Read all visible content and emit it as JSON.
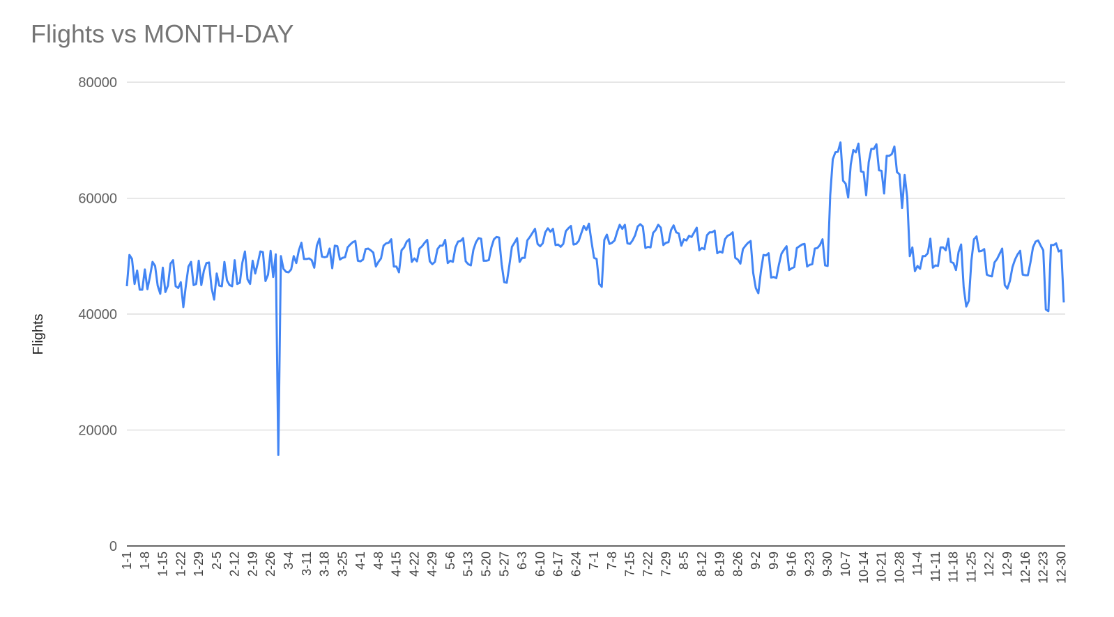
{
  "chart_data": {
    "type": "line",
    "title": "Flights vs MONTH-DAY",
    "xlabel": "",
    "ylabel": "Flights",
    "ylim": [
      0,
      80000
    ],
    "yticks": [
      0,
      20000,
      40000,
      60000,
      80000
    ],
    "grid": true,
    "legend": "none",
    "line_color": "#4285f4",
    "x_tick_labels": [
      "1-1",
      "1-8",
      "1-15",
      "1-22",
      "1-29",
      "2-5",
      "2-12",
      "2-19",
      "2-26",
      "3-4",
      "3-11",
      "3-18",
      "3-25",
      "4-1",
      "4-8",
      "4-15",
      "4-22",
      "4-29",
      "5-6",
      "5-13",
      "5-20",
      "5-27",
      "6-3",
      "6-10",
      "6-17",
      "6-24",
      "7-1",
      "7-8",
      "7-15",
      "7-22",
      "7-29",
      "8-5",
      "8-12",
      "8-19",
      "8-26",
      "9-2",
      "9-9",
      "9-16",
      "9-23",
      "9-30",
      "10-7",
      "10-14",
      "10-21",
      "10-28",
      "11-4",
      "11-11",
      "11-18",
      "11-25",
      "12-2",
      "12-9",
      "12-16",
      "12-23",
      "12-30"
    ],
    "series": [
      {
        "values": [
          44800,
          50200,
          49500,
          45200,
          47500,
          44200,
          44200,
          47700,
          44300,
          46500,
          49000,
          48300,
          44900,
          43500,
          48000,
          43800,
          44900,
          48700,
          49300,
          44800,
          44500,
          45500,
          41200,
          45000,
          48200,
          49000,
          45000,
          45200,
          49200,
          45000,
          47500,
          48800,
          48900,
          44500,
          42500,
          47000,
          44900,
          44800,
          49000,
          45800,
          45000,
          44800,
          49300,
          45200,
          45400,
          48900,
          50800,
          46000,
          45200,
          49200,
          47000,
          48800,
          50800,
          50700,
          45700,
          46800,
          50900,
          46400,
          50300,
          15700,
          50000,
          47800,
          47300,
          47200,
          47700,
          50000,
          48800,
          51000,
          52300,
          49500,
          49500,
          49600,
          49300,
          48000,
          51800,
          53000,
          49900,
          49800,
          49900,
          51300,
          47900,
          51800,
          51700,
          49400,
          49700,
          49800,
          51500,
          52000,
          52400,
          52600,
          49200,
          49100,
          49400,
          51200,
          51300,
          51000,
          50600,
          48200,
          49000,
          49600,
          51800,
          52200,
          52300,
          52900,
          48200,
          48200,
          47200,
          51000,
          51500,
          52500,
          52900,
          49000,
          49600,
          49100,
          51300,
          51700,
          52300,
          52800,
          49100,
          48600,
          49000,
          51200,
          51800,
          51800,
          52800,
          48800,
          49200,
          49000,
          51500,
          52500,
          52600,
          53100,
          49100,
          48600,
          48400,
          51100,
          52400,
          53100,
          53000,
          49200,
          49200,
          49300,
          51500,
          52900,
          53300,
          53200,
          48600,
          45500,
          45400,
          48400,
          51600,
          52300,
          53100,
          49000,
          49700,
          49700,
          52700,
          53300,
          54000,
          54700,
          52100,
          51700,
          52200,
          54100,
          54800,
          54200,
          54700,
          51900,
          52000,
          51600,
          52100,
          54300,
          54800,
          55200,
          52000,
          52100,
          52600,
          53900,
          55200,
          54500,
          55600,
          52500,
          49700,
          49500,
          45200,
          44700,
          52800,
          53700,
          52100,
          52300,
          52700,
          54200,
          55400,
          54700,
          55400,
          52200,
          52100,
          52700,
          53600,
          55100,
          55500,
          55100,
          51400,
          51600,
          51500,
          54000,
          54500,
          55400,
          54900,
          51900,
          52300,
          52400,
          54500,
          55300,
          54100,
          53900,
          51800,
          52900,
          52700,
          53500,
          53300,
          54100,
          54900,
          51000,
          51400,
          51200,
          53600,
          54100,
          54100,
          54400,
          50500,
          50800,
          50600,
          52900,
          53500,
          53700,
          54100,
          49700,
          49400,
          48700,
          51200,
          51800,
          52300,
          52600,
          47100,
          44500,
          43600,
          47400,
          50200,
          50100,
          50500,
          46300,
          46400,
          46200,
          48500,
          50400,
          51100,
          51700,
          47600,
          47900,
          48100,
          51400,
          51700,
          52000,
          52100,
          48200,
          48500,
          48600,
          51300,
          51400,
          51900,
          52900,
          48400,
          48300,
          60500,
          66700,
          67900,
          68000,
          69600,
          63000,
          62500,
          60100,
          65800,
          68300,
          67900,
          69400,
          64600,
          64500,
          60500,
          66200,
          68500,
          68500,
          69300,
          64800,
          64700,
          60800,
          67300,
          67300,
          67600,
          68900,
          64500,
          64100,
          58300,
          64000,
          60100,
          50000,
          51500,
          47400,
          48300,
          47800,
          50000,
          50000,
          50500,
          53000,
          48000,
          48400,
          48300,
          51500,
          51500,
          51000,
          53000,
          49000,
          48800,
          47600,
          50700,
          52000,
          44600,
          41300,
          42300,
          49200,
          52900,
          53400,
          50800,
          50900,
          51200,
          46800,
          46600,
          46500,
          48900,
          49500,
          50400,
          51300,
          45000,
          44400,
          45700,
          48100,
          49400,
          50300,
          50900,
          46800,
          46700,
          46700,
          48900,
          51500,
          52500,
          52700,
          51800,
          51000,
          40800,
          40500,
          51900,
          51900,
          52200,
          50800,
          51000,
          42000
        ]
      }
    ]
  }
}
